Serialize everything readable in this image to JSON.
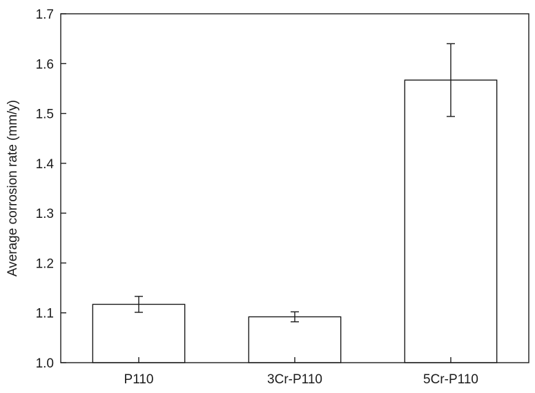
{
  "chart_data": {
    "type": "bar",
    "title": "",
    "xlabel": "",
    "ylabel": "Average corrosion rate (mm/y)",
    "categories": [
      "P110",
      "3Cr-P110",
      "5Cr-P110"
    ],
    "values": [
      1.117,
      1.092,
      1.567
    ],
    "error": [
      0.016,
      0.01,
      0.073
    ],
    "ylim": [
      1.0,
      1.7
    ],
    "yticks": [
      1.0,
      1.1,
      1.2,
      1.3,
      1.4,
      1.5,
      1.6,
      1.7
    ],
    "ytick_labels": [
      "1.0",
      "1.1",
      "1.2",
      "1.3",
      "1.4",
      "1.5",
      "1.6",
      "1.7"
    ],
    "grid": false,
    "legend": "none",
    "bar_fill": "#ffffff",
    "stroke_color": "#1a1a1a"
  }
}
